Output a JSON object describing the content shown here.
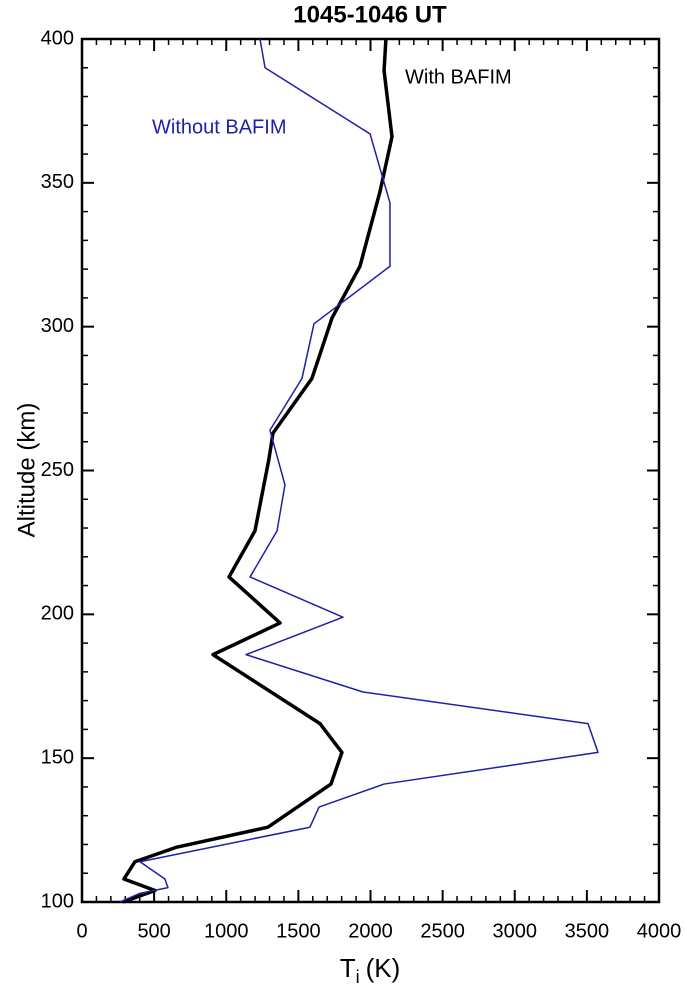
{
  "chart_data": {
    "type": "line",
    "title": "1045-1046 UT",
    "xlabel": {
      "base": "T",
      "subscript": "i",
      "unit": "(K)"
    },
    "ylabel": "Altitude (km)",
    "xlim": [
      0,
      4000
    ],
    "xticks": [
      0,
      500,
      1000,
      1500,
      2000,
      2500,
      3000,
      3500,
      4000
    ],
    "ylim": [
      100,
      400
    ],
    "yticks": [
      100,
      150,
      200,
      250,
      300,
      350,
      400
    ],
    "series": [
      {
        "name": "With BAFIM",
        "color": "#000000",
        "width": 3.5,
        "x": [
          2107,
          2094,
          2149,
          2066,
          1927,
          1733,
          1594,
          1324,
          1296,
          1199,
          1019,
          1373,
          908,
          1650,
          1802,
          1726,
          1289,
          652,
          367,
          291,
          506,
          284
        ],
        "y": [
          400,
          389,
          366,
          347,
          321,
          303,
          282,
          263,
          254,
          229,
          213,
          197,
          186,
          162,
          152,
          141,
          126,
          119,
          114,
          108,
          104,
          100
        ]
      },
      {
        "name": "Without BAFIM",
        "color": "#1f1fa8",
        "width": 1.5,
        "x": [
          1234,
          1269,
          1997,
          2135,
          2135,
          1608,
          1525,
          1303,
          1407,
          1352,
          1165,
          1809,
          1137,
          1948,
          3508,
          3577,
          2094,
          1643,
          1580,
          402,
          575,
          596,
          402,
          263
        ],
        "y": [
          400,
          390,
          367,
          343,
          321,
          301,
          282,
          264,
          245,
          229,
          213,
          199,
          186,
          173,
          162,
          152,
          141,
          133,
          126,
          114,
          108,
          105,
          103,
          100
        ]
      }
    ]
  }
}
